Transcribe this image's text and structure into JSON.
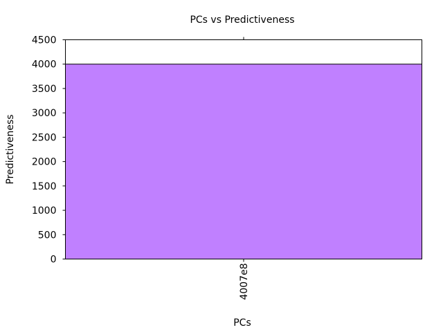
{
  "chart_data": {
    "type": "bar",
    "title": "PCs vs Predictiveness",
    "xlabel": "PCs",
    "ylabel": "Predictiveness",
    "categories": [
      "4007e8"
    ],
    "values": [
      4000
    ],
    "ylim": [
      0,
      4500
    ],
    "yticks": [
      0,
      500,
      1000,
      1500,
      2000,
      2500,
      3000,
      3500,
      4000,
      4500
    ],
    "grid": false,
    "legend": "none",
    "bar_color": "#c080ff"
  }
}
